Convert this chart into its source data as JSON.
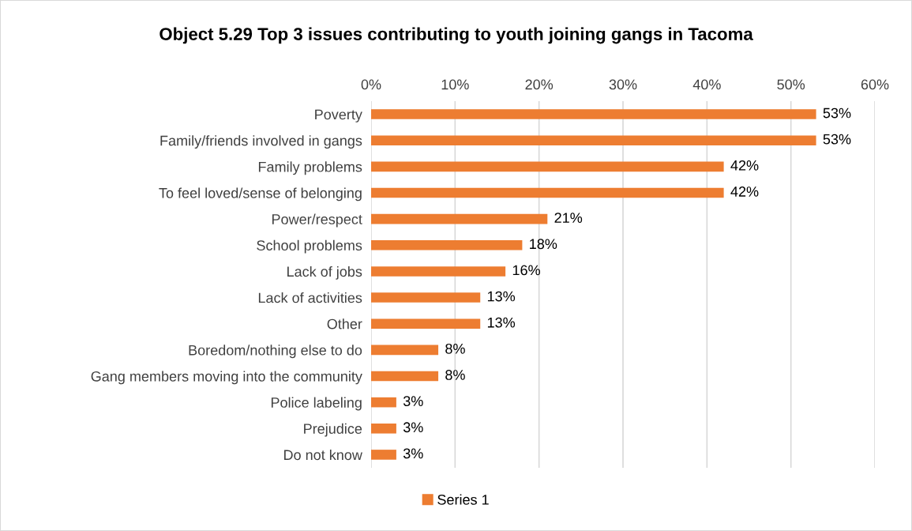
{
  "chart_data": {
    "type": "bar",
    "orientation": "horizontal",
    "title": "Object 5.29 Top 3 issues contributing to youth joining gangs in Tacoma",
    "categories": [
      "Poverty",
      "Family/friends involved in gangs",
      "Family problems",
      "To feel loved/sense of belonging",
      "Power/respect",
      "School problems",
      "Lack of jobs",
      "Lack of activities",
      "Other",
      "Boredom/nothing else to do",
      "Gang members moving into the community",
      "Police labeling",
      "Prejudice",
      "Do not know"
    ],
    "series": [
      {
        "name": "Series 1",
        "color": "#ed7d31",
        "values": [
          53,
          53,
          42,
          42,
          21,
          18,
          16,
          13,
          13,
          8,
          8,
          3,
          3,
          3
        ],
        "value_labels": [
          "53%",
          "53%",
          "42%",
          "42%",
          "21%",
          "18%",
          "16%",
          "13%",
          "13%",
          "8%",
          "8%",
          "3%",
          "3%",
          "3%"
        ]
      }
    ],
    "xlim": [
      0,
      60
    ],
    "xticks": [
      {
        "value": 0,
        "label": "0%"
      },
      {
        "value": 10,
        "label": "10%"
      },
      {
        "value": 20,
        "label": "20%"
      },
      {
        "value": 30,
        "label": "30%"
      },
      {
        "value": 40,
        "label": "40%"
      },
      {
        "value": 50,
        "label": "50%"
      },
      {
        "value": 60,
        "label": "60%"
      }
    ],
    "grid": "x",
    "legend": "bottom"
  }
}
